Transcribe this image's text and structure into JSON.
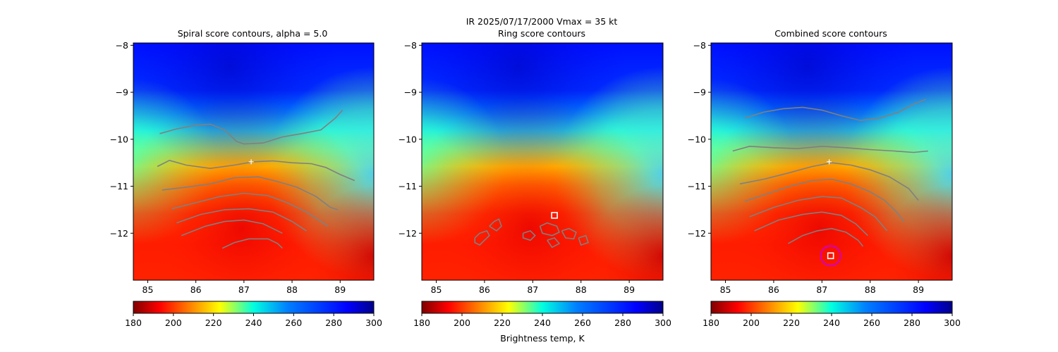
{
  "suptitle": "IR  2025/07/17/2000    Vmax = 35 kt",
  "chart_data": [
    {
      "type": "heatmap",
      "title": "Spiral score contours, alpha =  5.0",
      "xlim": [
        84.7,
        89.7
      ],
      "ylim": [
        -13.0,
        -7.95
      ],
      "xticks": [
        "85",
        "86",
        "87",
        "88",
        "89"
      ],
      "yticks": [
        "−8",
        "−9",
        "−10",
        "−11",
        "−12"
      ],
      "cbar_ticks": [
        "180",
        "200",
        "220",
        "240",
        "260",
        "280",
        "300"
      ],
      "cbar_label": "",
      "center_marker": [
        87.15,
        -10.48
      ],
      "contours": [
        [
          [
            85.25,
            -9.88
          ],
          [
            85.6,
            -9.78
          ],
          [
            86.0,
            -9.7
          ],
          [
            86.3,
            -9.68
          ],
          [
            86.6,
            -9.8
          ],
          [
            86.85,
            -10.05
          ],
          [
            87.0,
            -10.1
          ],
          [
            87.4,
            -10.08
          ],
          [
            87.8,
            -9.95
          ],
          [
            88.2,
            -9.88
          ],
          [
            88.6,
            -9.8
          ],
          [
            88.9,
            -9.55
          ],
          [
            89.05,
            -9.38
          ]
        ],
        [
          [
            85.2,
            -10.58
          ],
          [
            85.45,
            -10.45
          ],
          [
            85.8,
            -10.55
          ],
          [
            86.3,
            -10.62
          ],
          [
            86.8,
            -10.55
          ],
          [
            87.2,
            -10.48
          ],
          [
            87.6,
            -10.46
          ],
          [
            88.0,
            -10.5
          ],
          [
            88.4,
            -10.52
          ],
          [
            88.7,
            -10.6
          ],
          [
            89.0,
            -10.75
          ],
          [
            89.3,
            -10.88
          ]
        ],
        [
          [
            85.3,
            -11.08
          ],
          [
            85.8,
            -11.02
          ],
          [
            86.3,
            -10.95
          ],
          [
            86.8,
            -10.82
          ],
          [
            87.3,
            -10.8
          ],
          [
            87.7,
            -10.9
          ],
          [
            88.1,
            -11.02
          ],
          [
            88.5,
            -11.22
          ],
          [
            88.8,
            -11.45
          ],
          [
            88.95,
            -11.5
          ]
        ],
        [
          [
            85.5,
            -11.48
          ],
          [
            86.0,
            -11.35
          ],
          [
            86.5,
            -11.22
          ],
          [
            87.0,
            -11.15
          ],
          [
            87.5,
            -11.2
          ],
          [
            87.9,
            -11.35
          ],
          [
            88.3,
            -11.55
          ],
          [
            88.6,
            -11.75
          ],
          [
            88.75,
            -11.85
          ]
        ],
        [
          [
            85.6,
            -11.78
          ],
          [
            86.1,
            -11.6
          ],
          [
            86.6,
            -11.5
          ],
          [
            87.1,
            -11.48
          ],
          [
            87.6,
            -11.55
          ],
          [
            88.0,
            -11.75
          ],
          [
            88.3,
            -11.95
          ]
        ],
        [
          [
            85.7,
            -12.05
          ],
          [
            86.2,
            -11.85
          ],
          [
            86.6,
            -11.75
          ],
          [
            87.0,
            -11.72
          ],
          [
            87.4,
            -11.8
          ],
          [
            87.8,
            -12.0
          ]
        ],
        [
          [
            86.55,
            -12.32
          ],
          [
            86.8,
            -12.2
          ],
          [
            87.1,
            -12.12
          ],
          [
            87.5,
            -12.12
          ],
          [
            87.7,
            -12.22
          ],
          [
            87.8,
            -12.32
          ]
        ]
      ],
      "box_marker": null,
      "circle_marker": null
    },
    {
      "type": "heatmap",
      "title": "Ring score contours",
      "xlim": [
        84.7,
        89.7
      ],
      "ylim": [
        -13.0,
        -7.95
      ],
      "xticks": [
        "85",
        "86",
        "87",
        "88",
        "89"
      ],
      "yticks": [
        "−8",
        "−9",
        "−10",
        "−11",
        "−12"
      ],
      "cbar_ticks": [
        "180",
        "200",
        "220",
        "240",
        "260",
        "280",
        "300"
      ],
      "cbar_label": "Brightness temp, K",
      "center_marker": null,
      "contours": [
        [
          [
            85.8,
            -12.1
          ],
          [
            85.9,
            -12.0
          ],
          [
            86.05,
            -11.95
          ],
          [
            86.1,
            -12.05
          ],
          [
            86.0,
            -12.15
          ],
          [
            85.9,
            -12.25
          ],
          [
            85.8,
            -12.2
          ],
          [
            85.8,
            -12.1
          ]
        ],
        [
          [
            86.1,
            -11.85
          ],
          [
            86.2,
            -11.75
          ],
          [
            86.3,
            -11.7
          ],
          [
            86.35,
            -11.85
          ],
          [
            86.25,
            -11.95
          ],
          [
            86.1,
            -11.85
          ]
        ],
        [
          [
            86.8,
            -12.0
          ],
          [
            86.95,
            -11.95
          ],
          [
            87.05,
            -12.05
          ],
          [
            86.95,
            -12.15
          ],
          [
            86.8,
            -12.1
          ],
          [
            86.8,
            -12.0
          ]
        ],
        [
          [
            87.15,
            -11.85
          ],
          [
            87.3,
            -11.78
          ],
          [
            87.5,
            -11.85
          ],
          [
            87.55,
            -11.98
          ],
          [
            87.4,
            -12.05
          ],
          [
            87.2,
            -12.0
          ],
          [
            87.15,
            -11.85
          ]
        ],
        [
          [
            87.6,
            -11.95
          ],
          [
            87.75,
            -11.9
          ],
          [
            87.9,
            -11.98
          ],
          [
            87.85,
            -12.12
          ],
          [
            87.68,
            -12.1
          ],
          [
            87.6,
            -11.95
          ]
        ],
        [
          [
            87.95,
            -12.1
          ],
          [
            88.1,
            -12.05
          ],
          [
            88.15,
            -12.2
          ],
          [
            88.0,
            -12.25
          ],
          [
            87.95,
            -12.1
          ]
        ],
        [
          [
            87.3,
            -12.15
          ],
          [
            87.45,
            -12.1
          ],
          [
            87.55,
            -12.22
          ],
          [
            87.4,
            -12.3
          ],
          [
            87.3,
            -12.15
          ]
        ]
      ],
      "box_marker": [
        87.45,
        -11.62
      ],
      "circle_marker": null
    },
    {
      "type": "heatmap",
      "title": "Combined score contours",
      "xlim": [
        84.7,
        89.7
      ],
      "ylim": [
        -13.0,
        -7.95
      ],
      "xticks": [
        "85",
        "86",
        "87",
        "88",
        "89"
      ],
      "yticks": [
        "−8",
        "−9",
        "−10",
        "−11",
        "−12"
      ],
      "cbar_ticks": [
        "180",
        "200",
        "220",
        "240",
        "260",
        "280",
        "300"
      ],
      "cbar_label": "",
      "center_marker": [
        87.15,
        -10.48
      ],
      "contours": [
        [
          [
            85.4,
            -9.55
          ],
          [
            85.8,
            -9.42
          ],
          [
            86.2,
            -9.35
          ],
          [
            86.6,
            -9.32
          ],
          [
            87.0,
            -9.38
          ],
          [
            87.4,
            -9.5
          ],
          [
            87.8,
            -9.6
          ],
          [
            88.2,
            -9.55
          ],
          [
            88.6,
            -9.42
          ],
          [
            88.9,
            -9.25
          ],
          [
            89.15,
            -9.15
          ]
        ],
        [
          [
            85.15,
            -10.25
          ],
          [
            85.5,
            -10.15
          ],
          [
            86.0,
            -10.18
          ],
          [
            86.5,
            -10.2
          ],
          [
            87.0,
            -10.15
          ],
          [
            87.5,
            -10.18
          ],
          [
            88.0,
            -10.22
          ],
          [
            88.5,
            -10.25
          ],
          [
            88.9,
            -10.28
          ],
          [
            89.2,
            -10.25
          ]
        ],
        [
          [
            85.3,
            -10.95
          ],
          [
            85.8,
            -10.85
          ],
          [
            86.3,
            -10.72
          ],
          [
            86.8,
            -10.58
          ],
          [
            87.2,
            -10.5
          ],
          [
            87.6,
            -10.55
          ],
          [
            88.0,
            -10.65
          ],
          [
            88.4,
            -10.8
          ],
          [
            88.8,
            -11.05
          ],
          [
            89.0,
            -11.3
          ]
        ],
        [
          [
            85.4,
            -11.32
          ],
          [
            85.9,
            -11.15
          ],
          [
            86.4,
            -10.98
          ],
          [
            86.8,
            -10.88
          ],
          [
            87.2,
            -10.85
          ],
          [
            87.6,
            -10.95
          ],
          [
            88.0,
            -11.12
          ],
          [
            88.3,
            -11.3
          ],
          [
            88.55,
            -11.55
          ],
          [
            88.7,
            -11.75
          ]
        ],
        [
          [
            85.5,
            -11.65
          ],
          [
            86.0,
            -11.45
          ],
          [
            86.5,
            -11.3
          ],
          [
            87.0,
            -11.22
          ],
          [
            87.4,
            -11.25
          ],
          [
            87.8,
            -11.45
          ],
          [
            88.1,
            -11.65
          ],
          [
            88.35,
            -11.95
          ]
        ],
        [
          [
            85.6,
            -11.95
          ],
          [
            86.1,
            -11.72
          ],
          [
            86.6,
            -11.6
          ],
          [
            87.0,
            -11.55
          ],
          [
            87.4,
            -11.62
          ],
          [
            87.7,
            -11.8
          ],
          [
            87.95,
            -12.05
          ]
        ],
        [
          [
            86.3,
            -12.22
          ],
          [
            86.6,
            -12.05
          ],
          [
            86.9,
            -11.95
          ],
          [
            87.2,
            -11.9
          ],
          [
            87.5,
            -11.98
          ],
          [
            87.75,
            -12.15
          ],
          [
            87.85,
            -12.28
          ]
        ]
      ],
      "box_marker": [
        87.18,
        -12.48
      ],
      "circle_marker": [
        87.18,
        -12.48
      ]
    }
  ]
}
